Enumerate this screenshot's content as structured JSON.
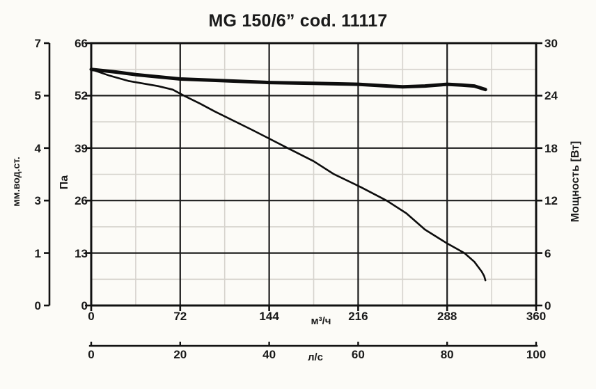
{
  "title": "MG 150/6” cod. 11117",
  "chart_data": {
    "type": "line",
    "title": "MG 150/6” cod. 11117",
    "grid": "on",
    "x_axis_primary": {
      "label": "м³/ч",
      "tick_labels": [
        "0",
        "72",
        "144",
        "216",
        "288",
        "360"
      ],
      "range": [
        0,
        360
      ],
      "minor_ticks": [
        36,
        108,
        180,
        252,
        324
      ]
    },
    "x_axis_secondary": {
      "label": "л/с",
      "tick_labels": [
        "0",
        "20",
        "40",
        "60",
        "80",
        "100"
      ],
      "range": [
        0,
        100
      ]
    },
    "y_axis_pa": {
      "label": "Па",
      "tick_labels": [
        "0",
        "13",
        "26",
        "39",
        "52",
        "66"
      ],
      "range": [
        0,
        66
      ]
    },
    "y_axis_mm": {
      "label": "мм.вод.ст.",
      "tick_labels": [
        "0",
        "1",
        "3",
        "4",
        "5",
        "7"
      ]
    },
    "y_axis_watt": {
      "label": "Мощность [Вт]",
      "tick_labels": [
        "0",
        "6",
        "12",
        "18",
        "24",
        "30"
      ],
      "range": [
        0,
        30
      ]
    },
    "series": [
      {
        "name": "pressure-curve",
        "axis": "pa",
        "units": {
          "x": "m3/h",
          "y": "Pa"
        },
        "stroke_width": 2.6,
        "points": [
          [
            0,
            59.4
          ],
          [
            15,
            57.8
          ],
          [
            30,
            56.5
          ],
          [
            54,
            55.2
          ],
          [
            66,
            54.3
          ],
          [
            75,
            52.8
          ],
          [
            88,
            50.8
          ],
          [
            100,
            48.8
          ],
          [
            130,
            44.2
          ],
          [
            159,
            39.6
          ],
          [
            180,
            36.3
          ],
          [
            196,
            33.1
          ],
          [
            218,
            29.8
          ],
          [
            239,
            26.4
          ],
          [
            255,
            23.2
          ],
          [
            270,
            19.1
          ],
          [
            287,
            15.8
          ],
          [
            302,
            13.2
          ],
          [
            310,
            11.0
          ],
          [
            316,
            8.5
          ],
          [
            318,
            7.4
          ],
          [
            319,
            6.3
          ]
        ]
      },
      {
        "name": "power-curve",
        "axis": "watt",
        "units": {
          "x": "m3/h",
          "y": "W"
        },
        "stroke_width": 5,
        "points": [
          [
            0,
            27.0
          ],
          [
            20,
            26.7
          ],
          [
            36,
            26.4
          ],
          [
            72,
            25.9
          ],
          [
            108,
            25.7
          ],
          [
            144,
            25.5
          ],
          [
            180,
            25.4
          ],
          [
            216,
            25.3
          ],
          [
            240,
            25.1
          ],
          [
            252,
            25.0
          ],
          [
            270,
            25.1
          ],
          [
            288,
            25.3
          ],
          [
            300,
            25.2
          ],
          [
            310,
            25.1
          ],
          [
            319,
            24.7
          ]
        ]
      }
    ],
    "colors": {
      "background": "#fcfbf7",
      "major_grid": "#1c1c1c",
      "minor_grid": "#d6d3cd",
      "border": "#111111",
      "curve": "#0d0d0d",
      "text": "#1a1a1a"
    }
  }
}
